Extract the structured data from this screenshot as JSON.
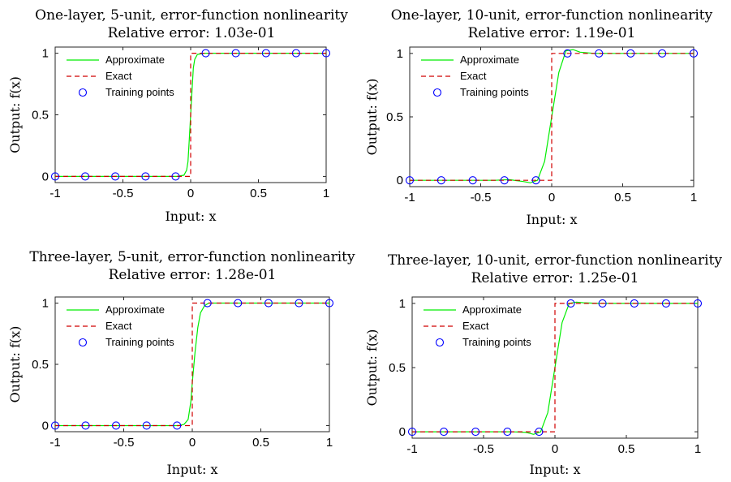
{
  "chart_data": [
    {
      "type": "line",
      "title": "One-layer, 5-unit, error-function nonlinearity",
      "subtitle": "Relative error: 1.03e-01",
      "xlabel": "Input: x",
      "ylabel": "Output: f(x)",
      "xlim": [
        -1,
        1
      ],
      "ylim": [
        -0.05,
        1.05
      ],
      "xticks": [
        "-1",
        "-0.5",
        "0",
        "0.5",
        "1"
      ],
      "yticks": [
        "0",
        "0.5",
        "1"
      ],
      "legend": "top-left",
      "series": [
        {
          "name": "Approximate",
          "style": "solid",
          "color": "#00ee00",
          "x": [
            -1,
            -0.1,
            -0.05,
            -0.03,
            -0.02,
            -0.01,
            0,
            0.01,
            0.02,
            0.03,
            0.05,
            0.1,
            1
          ],
          "y": [
            0,
            0,
            0.01,
            0.05,
            0.12,
            0.3,
            0.5,
            0.7,
            0.88,
            0.95,
            0.99,
            1,
            1
          ]
        },
        {
          "name": "Exact",
          "style": "dashed",
          "color": "#d00000",
          "x": [
            -1,
            0,
            0,
            1
          ],
          "y": [
            0,
            0,
            1,
            1
          ]
        },
        {
          "name": "Training points",
          "style": "markers",
          "color": "#0000ff",
          "x": [
            -1,
            -0.778,
            -0.556,
            -0.333,
            -0.111,
            0.111,
            0.333,
            0.556,
            0.778,
            1
          ],
          "y": [
            0,
            0,
            0,
            0,
            0,
            1,
            1,
            1,
            1,
            1
          ]
        }
      ]
    },
    {
      "type": "line",
      "title": "One-layer, 10-unit, error-function nonlinearity",
      "subtitle": "Relative error: 1.19e-01",
      "xlabel": "Input: x",
      "ylabel": "Output: f(x)",
      "xlim": [
        -1,
        1
      ],
      "ylim": [
        -0.05,
        1.05
      ],
      "xticks": [
        "-1",
        "-0.5",
        "0",
        "0.5",
        "1"
      ],
      "yticks": [
        "0",
        "0.5",
        "1"
      ],
      "legend": "top-left",
      "series": [
        {
          "name": "Approximate",
          "style": "solid",
          "color": "#00ee00",
          "x": [
            -1,
            -0.4,
            -0.3,
            -0.2,
            -0.15,
            -0.1,
            -0.05,
            0,
            0.05,
            0.1,
            0.15,
            0.2,
            0.3,
            1
          ],
          "y": [
            0,
            0,
            0.005,
            -0.01,
            -0.02,
            0.0,
            0.15,
            0.5,
            0.85,
            1.02,
            1.03,
            1.01,
            1.0,
            1
          ]
        },
        {
          "name": "Exact",
          "style": "dashed",
          "color": "#d00000",
          "x": [
            -1,
            0,
            0,
            1
          ],
          "y": [
            0,
            0,
            1,
            1
          ]
        },
        {
          "name": "Training points",
          "style": "markers",
          "color": "#0000ff",
          "x": [
            -1,
            -0.778,
            -0.556,
            -0.333,
            -0.111,
            0.111,
            0.333,
            0.556,
            0.778,
            1
          ],
          "y": [
            0,
            0,
            0,
            0,
            0,
            1,
            1,
            1,
            1,
            1
          ]
        }
      ]
    },
    {
      "type": "line",
      "title": "Three-layer, 5-unit, error-function nonlinearity",
      "subtitle": "Relative error: 1.28e-01",
      "xlabel": "Input: x",
      "ylabel": "Output: f(x)",
      "xlim": [
        -1,
        1
      ],
      "ylim": [
        -0.05,
        1.05
      ],
      "xticks": [
        "-1",
        "-0.5",
        "0",
        "0.5",
        "1"
      ],
      "yticks": [
        "0",
        "0.5",
        "1"
      ],
      "legend": "top-left",
      "series": [
        {
          "name": "Approximate",
          "style": "solid",
          "color": "#00ee00",
          "x": [
            -1,
            -0.1,
            -0.06,
            -0.03,
            -0.01,
            0,
            0.02,
            0.04,
            0.06,
            0.09,
            0.12,
            0.2,
            1
          ],
          "y": [
            0,
            0,
            0.01,
            0.05,
            0.2,
            0.35,
            0.6,
            0.8,
            0.92,
            0.98,
            1,
            1,
            1
          ]
        },
        {
          "name": "Exact",
          "style": "dashed",
          "color": "#d00000",
          "x": [
            -1,
            0,
            0,
            1
          ],
          "y": [
            0,
            0,
            1,
            1
          ]
        },
        {
          "name": "Training points",
          "style": "markers",
          "color": "#0000ff",
          "x": [
            -1,
            -0.778,
            -0.556,
            -0.333,
            -0.111,
            0.111,
            0.333,
            0.556,
            0.778,
            1
          ],
          "y": [
            0,
            0,
            0,
            0,
            0,
            1,
            1,
            1,
            1,
            1
          ]
        }
      ]
    },
    {
      "type": "line",
      "title": "Three-layer, 10-unit, error-function nonlinearity",
      "subtitle": "Relative error: 1.25e-01",
      "xlabel": "Input: x",
      "ylabel": "Output: f(x)",
      "xlim": [
        -1,
        1
      ],
      "ylim": [
        -0.05,
        1.05
      ],
      "xticks": [
        "-1",
        "-0.5",
        "0",
        "0.5",
        "1"
      ],
      "yticks": [
        "0",
        "0.5",
        "1"
      ],
      "legend": "top-left",
      "series": [
        {
          "name": "Approximate",
          "style": "solid",
          "color": "#00ee00",
          "x": [
            -1,
            -0.3,
            -0.2,
            -0.15,
            -0.1,
            -0.05,
            0,
            0.05,
            0.1,
            0.15,
            0.2,
            0.3,
            1
          ],
          "y": [
            0,
            0,
            -0.005,
            -0.02,
            0.0,
            0.15,
            0.5,
            0.85,
            1.0,
            1.01,
            1.005,
            1.0,
            1
          ]
        },
        {
          "name": "Exact",
          "style": "dashed",
          "color": "#d00000",
          "x": [
            -1,
            0,
            0,
            1
          ],
          "y": [
            0,
            0,
            1,
            1
          ]
        },
        {
          "name": "Training points",
          "style": "markers",
          "color": "#0000ff",
          "x": [
            -1,
            -0.778,
            -0.556,
            -0.333,
            -0.111,
            0.111,
            0.333,
            0.556,
            0.778,
            1
          ],
          "y": [
            0,
            0,
            0,
            0,
            0,
            1,
            1,
            1,
            1,
            1
          ]
        }
      ]
    }
  ]
}
